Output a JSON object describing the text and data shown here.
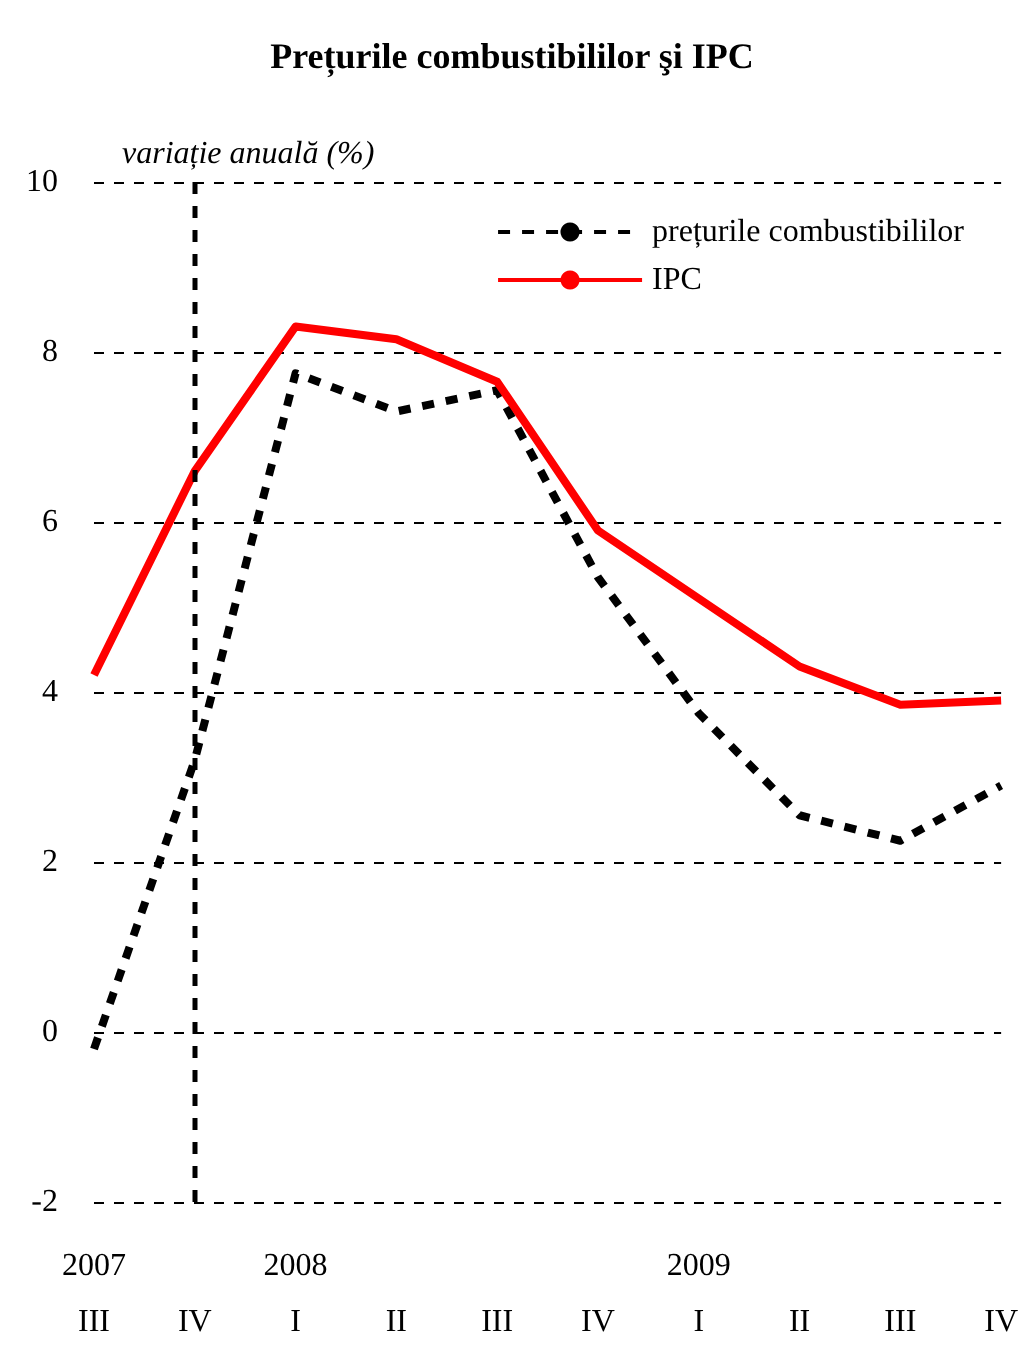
{
  "chart_data": {
    "type": "line",
    "title": "Prețurile combustibililor şi IPC",
    "ylabel": "variație anuală (%)",
    "categories": [
      "2007\nIII",
      "IV",
      "2008\nI",
      "II",
      "III",
      "IV",
      "2009\nI",
      "II",
      "III",
      "IV"
    ],
    "series": [
      {
        "name": "prețurile combustibililor",
        "color": "#000000",
        "line_style": "dashed",
        "values": [
          -0.2,
          3.2,
          7.75,
          7.3,
          7.55,
          5.35,
          3.75,
          2.55,
          2.25,
          2.9
        ]
      },
      {
        "name": "IPC",
        "color": "#ff0000",
        "line_style": "solid",
        "values": [
          4.2,
          6.6,
          8.3,
          8.15,
          7.65,
          5.9,
          5.1,
          4.3,
          3.85,
          3.9
        ]
      }
    ],
    "ylim": [
      -2,
      10
    ],
    "yticks": [
      -2,
      0,
      2,
      4,
      6,
      8,
      10
    ],
    "grid": "y",
    "legend": "top right",
    "marker": "none",
    "ref_lines": [
      {
        "axis": "x",
        "value": "IV",
        "color": "#000000",
        "line_style": "dashed"
      }
    ]
  }
}
